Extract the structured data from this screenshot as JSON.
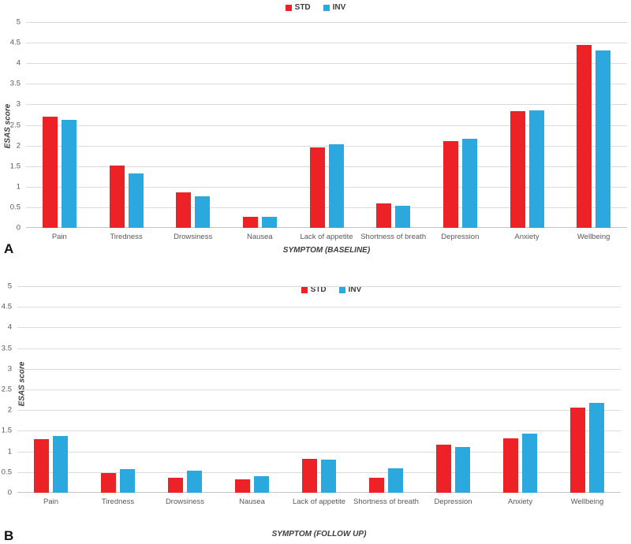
{
  "figure": {
    "series_colors": {
      "STD": "#ec2227",
      "INV": "#2ba9df"
    }
  },
  "chart_data": [
    {
      "type": "bar",
      "panel_label": "A",
      "xlabel": "SYMPTOM (BASELINE)",
      "ylabel": "ESAS score",
      "ylim": [
        0,
        5
      ],
      "ytick_step": 0.5,
      "grid": true,
      "legend_position": "top-center",
      "legend": [
        "STD",
        "INV"
      ],
      "categories": [
        "Pain",
        "Tiredness",
        "Drowsiness",
        "Nausea",
        "Lack of appetite",
        "Shortness of breath",
        "Depression",
        "Anxiety",
        "Wellbeing"
      ],
      "series": [
        {
          "name": "STD",
          "color": "#ec2227",
          "values": [
            2.71,
            1.51,
            0.87,
            0.27,
            1.96,
            0.59,
            2.11,
            2.83,
            4.44
          ]
        },
        {
          "name": "INV",
          "color": "#2ba9df",
          "values": [
            2.62,
            1.33,
            0.76,
            0.27,
            2.04,
            0.54,
            2.16,
            2.85,
            4.32
          ]
        }
      ]
    },
    {
      "type": "bar",
      "panel_label": "B",
      "xlabel": "SYMPTOM (FOLLOW UP)",
      "ylabel": "ESAS score",
      "ylim": [
        0,
        5
      ],
      "ytick_step": 0.5,
      "grid": true,
      "legend_position": "top-center",
      "legend": [
        "STD",
        "INV"
      ],
      "categories": [
        "Pain",
        "Tiredness",
        "Drowsiness",
        "Nausea",
        "Lack of appetite",
        "Shortness of breath",
        "Depression",
        "Anxiety",
        "Wellbeing"
      ],
      "series": [
        {
          "name": "STD",
          "color": "#ec2227",
          "values": [
            1.3,
            0.48,
            0.36,
            0.32,
            0.82,
            0.37,
            1.16,
            1.32,
            2.06
          ]
        },
        {
          "name": "INV",
          "color": "#2ba9df",
          "values": [
            1.38,
            0.57,
            0.53,
            0.41,
            0.8,
            0.6,
            1.1,
            1.43,
            2.17
          ]
        }
      ]
    }
  ]
}
